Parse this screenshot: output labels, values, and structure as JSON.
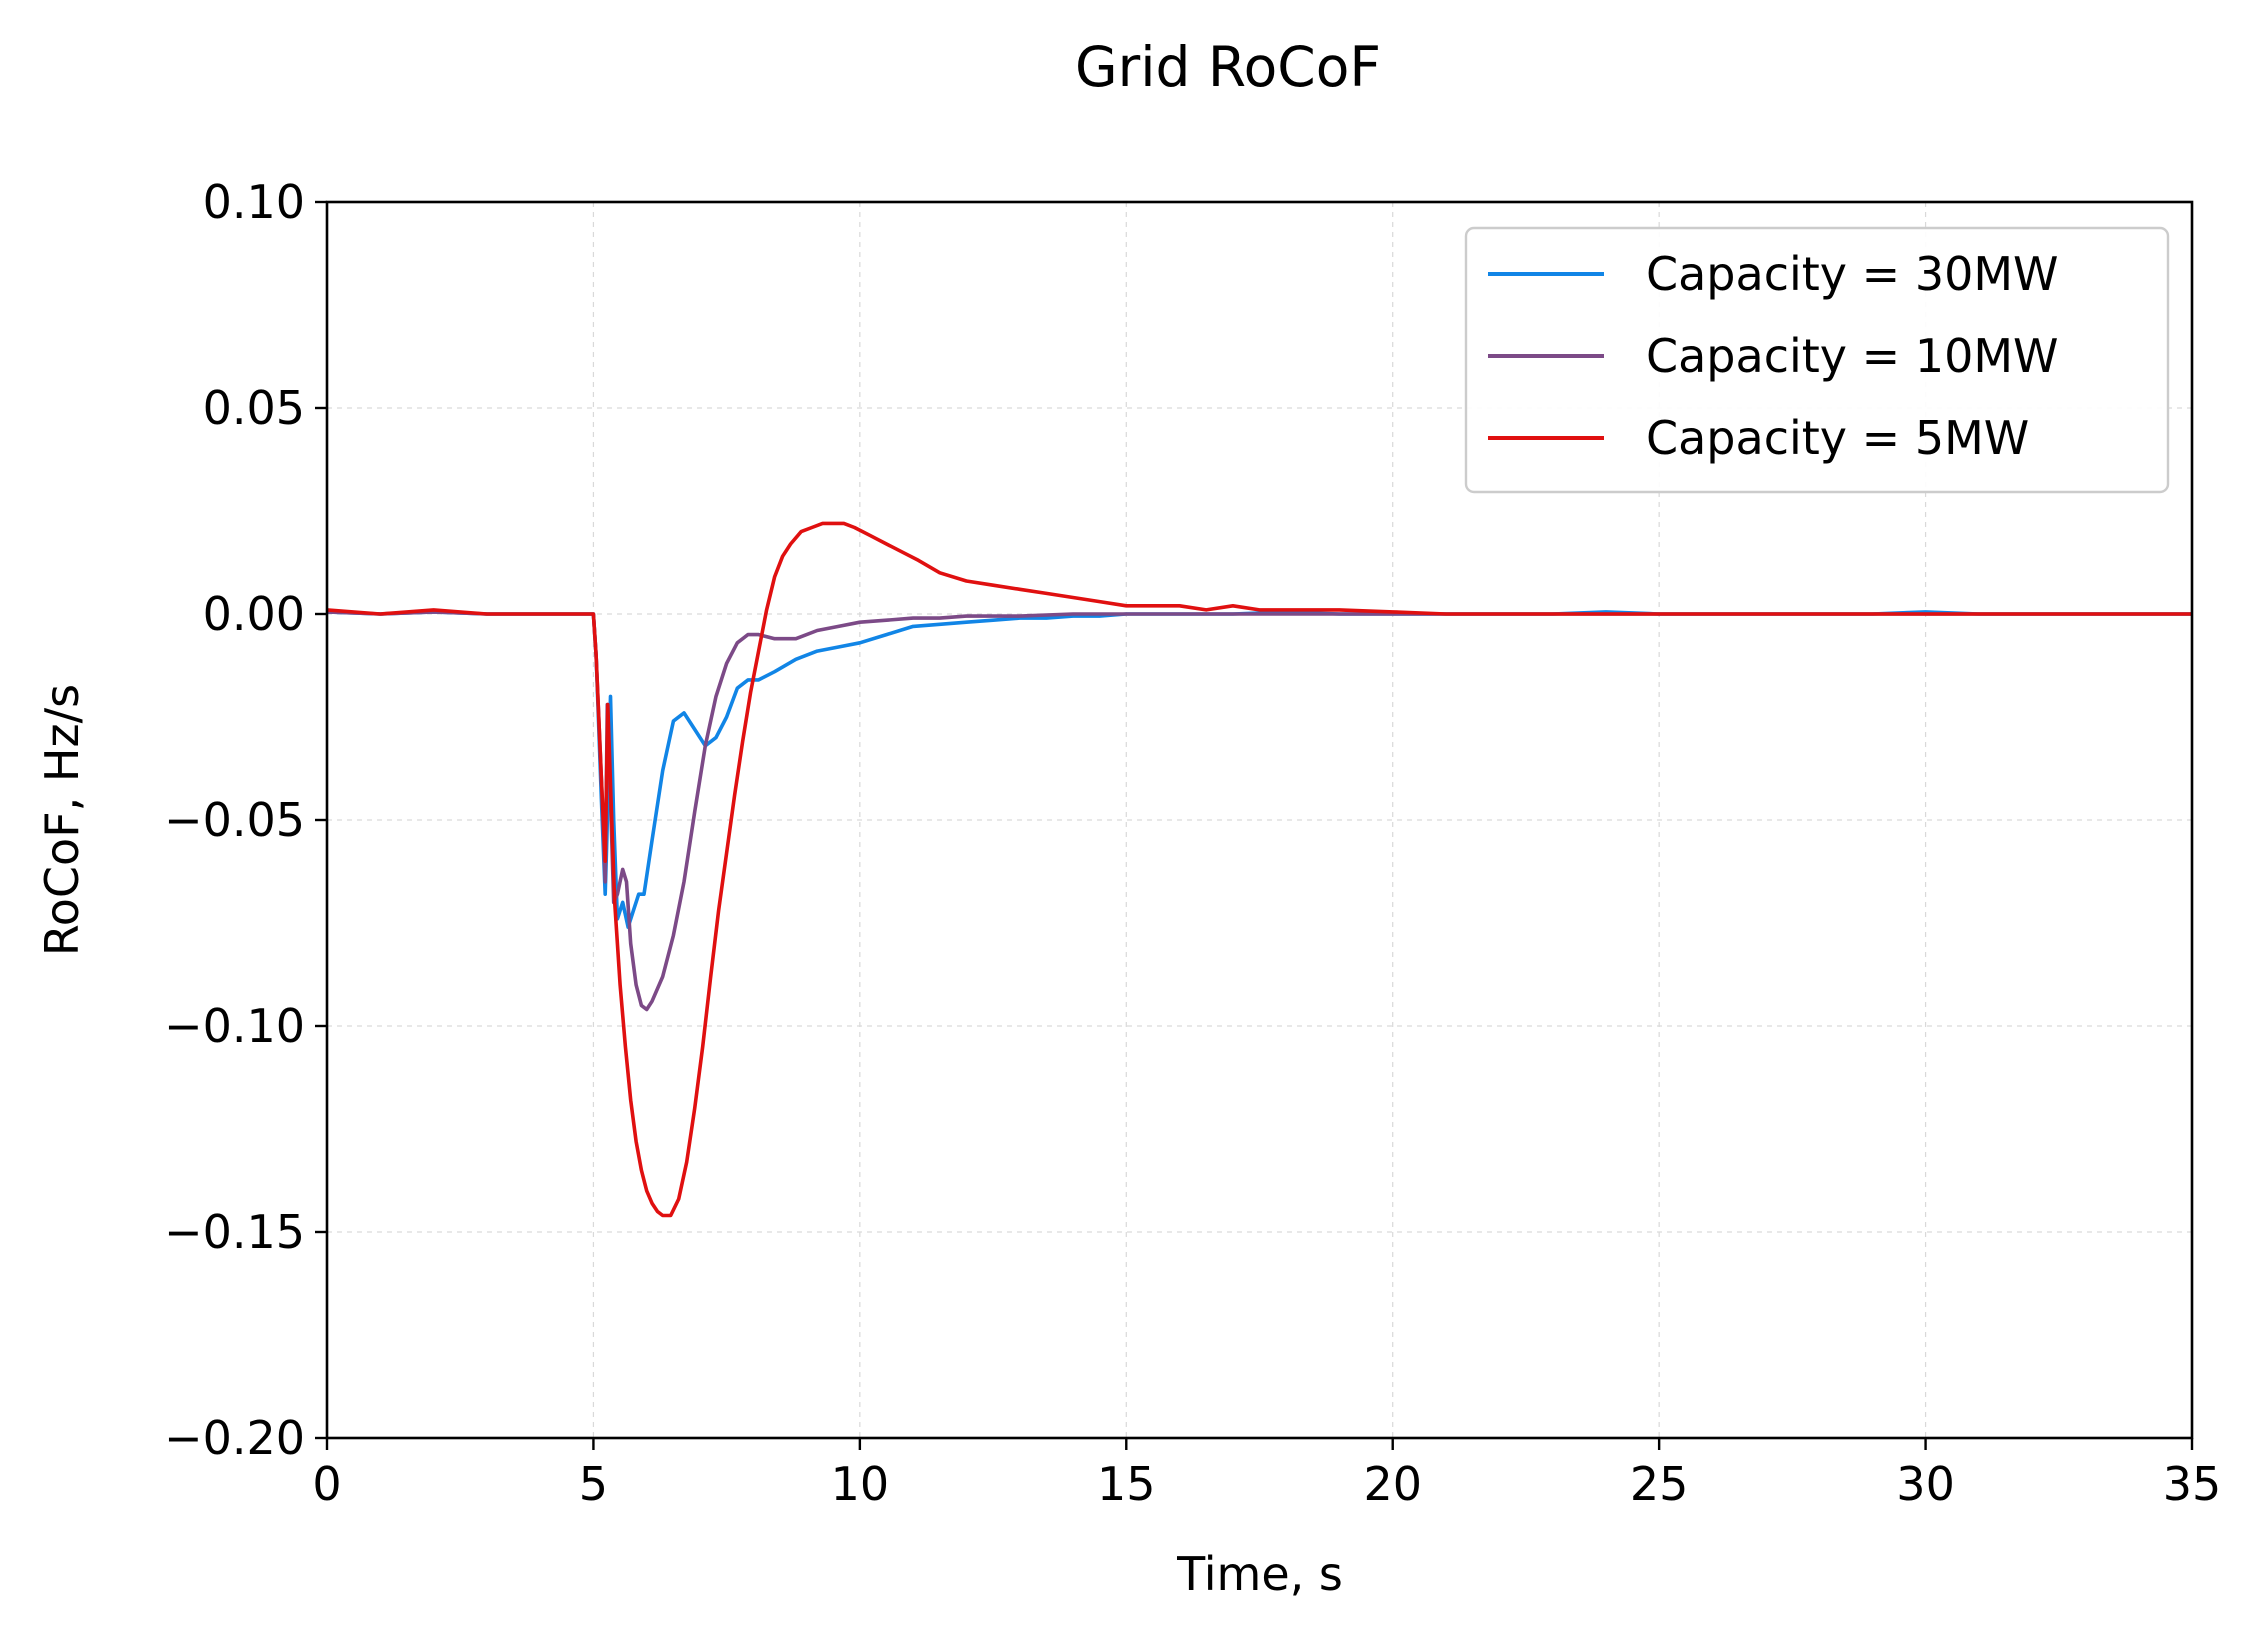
{
  "chart_data": {
    "type": "line",
    "title": "Grid RoCoF",
    "xlabel": "Time, s",
    "ylabel": "RoCoF, Hz/s",
    "xlim": [
      0,
      35
    ],
    "ylim": [
      -0.2,
      0.1
    ],
    "xticks": [
      0,
      5,
      10,
      15,
      20,
      25,
      30,
      35
    ],
    "xtick_labels": [
      "0",
      "5",
      "10",
      "15",
      "20",
      "25",
      "30",
      "35"
    ],
    "yticks": [
      0.1,
      0.05,
      0.0,
      -0.05,
      -0.1,
      -0.15,
      -0.2
    ],
    "ytick_labels": [
      "0.10",
      "0.05",
      "0.00",
      "−0.05",
      "−0.10",
      "−0.15",
      "−0.20"
    ],
    "grid": true,
    "legend_position": "top-right",
    "series": [
      {
        "name": "Capacity = 30MW",
        "color": "#1185e6",
        "x": [
          0,
          1,
          2,
          3,
          4,
          5,
          5.05,
          5.15,
          5.22,
          5.25,
          5.32,
          5.38,
          5.45,
          5.55,
          5.65,
          5.75,
          5.85,
          5.95,
          6.1,
          6.3,
          6.5,
          6.7,
          6.9,
          7.1,
          7.3,
          7.5,
          7.7,
          7.9,
          8.1,
          8.4,
          8.8,
          9.2,
          9.6,
          10,
          10.5,
          11,
          11.5,
          12,
          12.5,
          13,
          13.5,
          14,
          14.5,
          15,
          15.5,
          16,
          17,
          18,
          19,
          20,
          21,
          22,
          23,
          24,
          25,
          26,
          27,
          28,
          29,
          30,
          31,
          32,
          33,
          34,
          35
        ],
        "y": [
          0.0005,
          0.0,
          0.0005,
          0.0,
          0.0,
          0.0,
          -0.01,
          -0.045,
          -0.068,
          -0.055,
          -0.02,
          -0.05,
          -0.074,
          -0.07,
          -0.076,
          -0.072,
          -0.068,
          -0.068,
          -0.055,
          -0.038,
          -0.026,
          -0.024,
          -0.028,
          -0.032,
          -0.03,
          -0.025,
          -0.018,
          -0.016,
          -0.016,
          -0.014,
          -0.011,
          -0.009,
          -0.008,
          -0.007,
          -0.005,
          -0.003,
          -0.0025,
          -0.002,
          -0.0015,
          -0.001,
          -0.001,
          -0.0005,
          -0.0005,
          0.0,
          0.0,
          0.0,
          0.0,
          0.0005,
          0.0,
          0.0,
          0.0,
          0.0,
          0.0,
          0.0005,
          0.0,
          0.0,
          0.0,
          0.0,
          0.0,
          0.0005,
          0.0,
          0.0,
          0.0,
          0.0,
          0.0
        ]
      },
      {
        "name": "Capacity = 10MW",
        "color": "#7c4a87",
        "x": [
          0,
          1,
          2,
          3,
          4,
          5,
          5.05,
          5.15,
          5.22,
          5.26,
          5.32,
          5.38,
          5.45,
          5.55,
          5.62,
          5.7,
          5.8,
          5.9,
          6.0,
          6.1,
          6.3,
          6.5,
          6.7,
          6.9,
          7.1,
          7.3,
          7.5,
          7.7,
          7.9,
          8.1,
          8.4,
          8.8,
          9.2,
          9.6,
          10,
          10.5,
          11,
          11.5,
          12,
          13,
          14,
          15,
          16,
          17,
          18,
          19,
          20,
          21,
          22,
          23,
          24,
          25,
          26,
          27,
          28,
          29,
          30,
          31,
          32,
          33,
          34,
          35
        ],
        "y": [
          0.0005,
          0.0,
          0.0005,
          0.0,
          0.0,
          0.0,
          -0.01,
          -0.04,
          -0.065,
          -0.022,
          -0.045,
          -0.07,
          -0.068,
          -0.062,
          -0.065,
          -0.08,
          -0.09,
          -0.095,
          -0.096,
          -0.094,
          -0.088,
          -0.078,
          -0.065,
          -0.048,
          -0.032,
          -0.02,
          -0.012,
          -0.007,
          -0.005,
          -0.005,
          -0.006,
          -0.006,
          -0.004,
          -0.003,
          -0.002,
          -0.0015,
          -0.001,
          -0.001,
          -0.0005,
          -0.0005,
          0.0,
          0.0,
          0.0,
          0.0,
          0.0,
          0.0,
          0.0,
          0.0,
          0.0,
          0.0,
          0.0,
          0.0,
          0.0,
          0.0,
          0.0,
          0.0,
          0.0,
          0.0,
          0.0,
          0.0,
          0.0,
          0.0
        ]
      },
      {
        "name": "Capacity = 5MW",
        "color": "#e01010",
        "x": [
          0,
          1,
          2,
          3,
          4,
          5,
          5.05,
          5.15,
          5.22,
          5.27,
          5.33,
          5.4,
          5.5,
          5.6,
          5.7,
          5.8,
          5.9,
          6.0,
          6.1,
          6.2,
          6.3,
          6.45,
          6.6,
          6.75,
          6.9,
          7.05,
          7.2,
          7.35,
          7.5,
          7.65,
          7.8,
          7.95,
          8.1,
          8.25,
          8.4,
          8.55,
          8.7,
          8.9,
          9.1,
          9.3,
          9.5,
          9.7,
          9.9,
          10.2,
          10.5,
          10.8,
          11.1,
          11.5,
          12,
          12.5,
          13,
          13.5,
          14,
          14.5,
          15,
          15.5,
          16,
          16.5,
          17,
          17.5,
          18,
          19,
          20,
          21,
          22,
          23,
          24,
          25,
          26,
          27,
          28,
          29,
          30,
          31,
          32,
          33,
          34,
          35
        ],
        "y": [
          0.001,
          0.0,
          0.001,
          0.0,
          0.0,
          0.0,
          -0.01,
          -0.04,
          -0.06,
          -0.022,
          -0.045,
          -0.07,
          -0.09,
          -0.105,
          -0.118,
          -0.128,
          -0.135,
          -0.14,
          -0.143,
          -0.145,
          -0.146,
          -0.146,
          -0.142,
          -0.133,
          -0.12,
          -0.105,
          -0.088,
          -0.072,
          -0.058,
          -0.044,
          -0.031,
          -0.019,
          -0.009,
          0.001,
          0.009,
          0.014,
          0.017,
          0.02,
          0.021,
          0.022,
          0.022,
          0.022,
          0.021,
          0.019,
          0.017,
          0.015,
          0.013,
          0.01,
          0.008,
          0.007,
          0.006,
          0.005,
          0.004,
          0.003,
          0.002,
          0.002,
          0.002,
          0.001,
          0.002,
          0.001,
          0.001,
          0.001,
          0.0005,
          0.0,
          0.0,
          0.0,
          0.0,
          0.0,
          0.0,
          0.0,
          0.0,
          0.0,
          0.0,
          0.0,
          0.0,
          0.0,
          0.0,
          0.0
        ]
      }
    ]
  }
}
